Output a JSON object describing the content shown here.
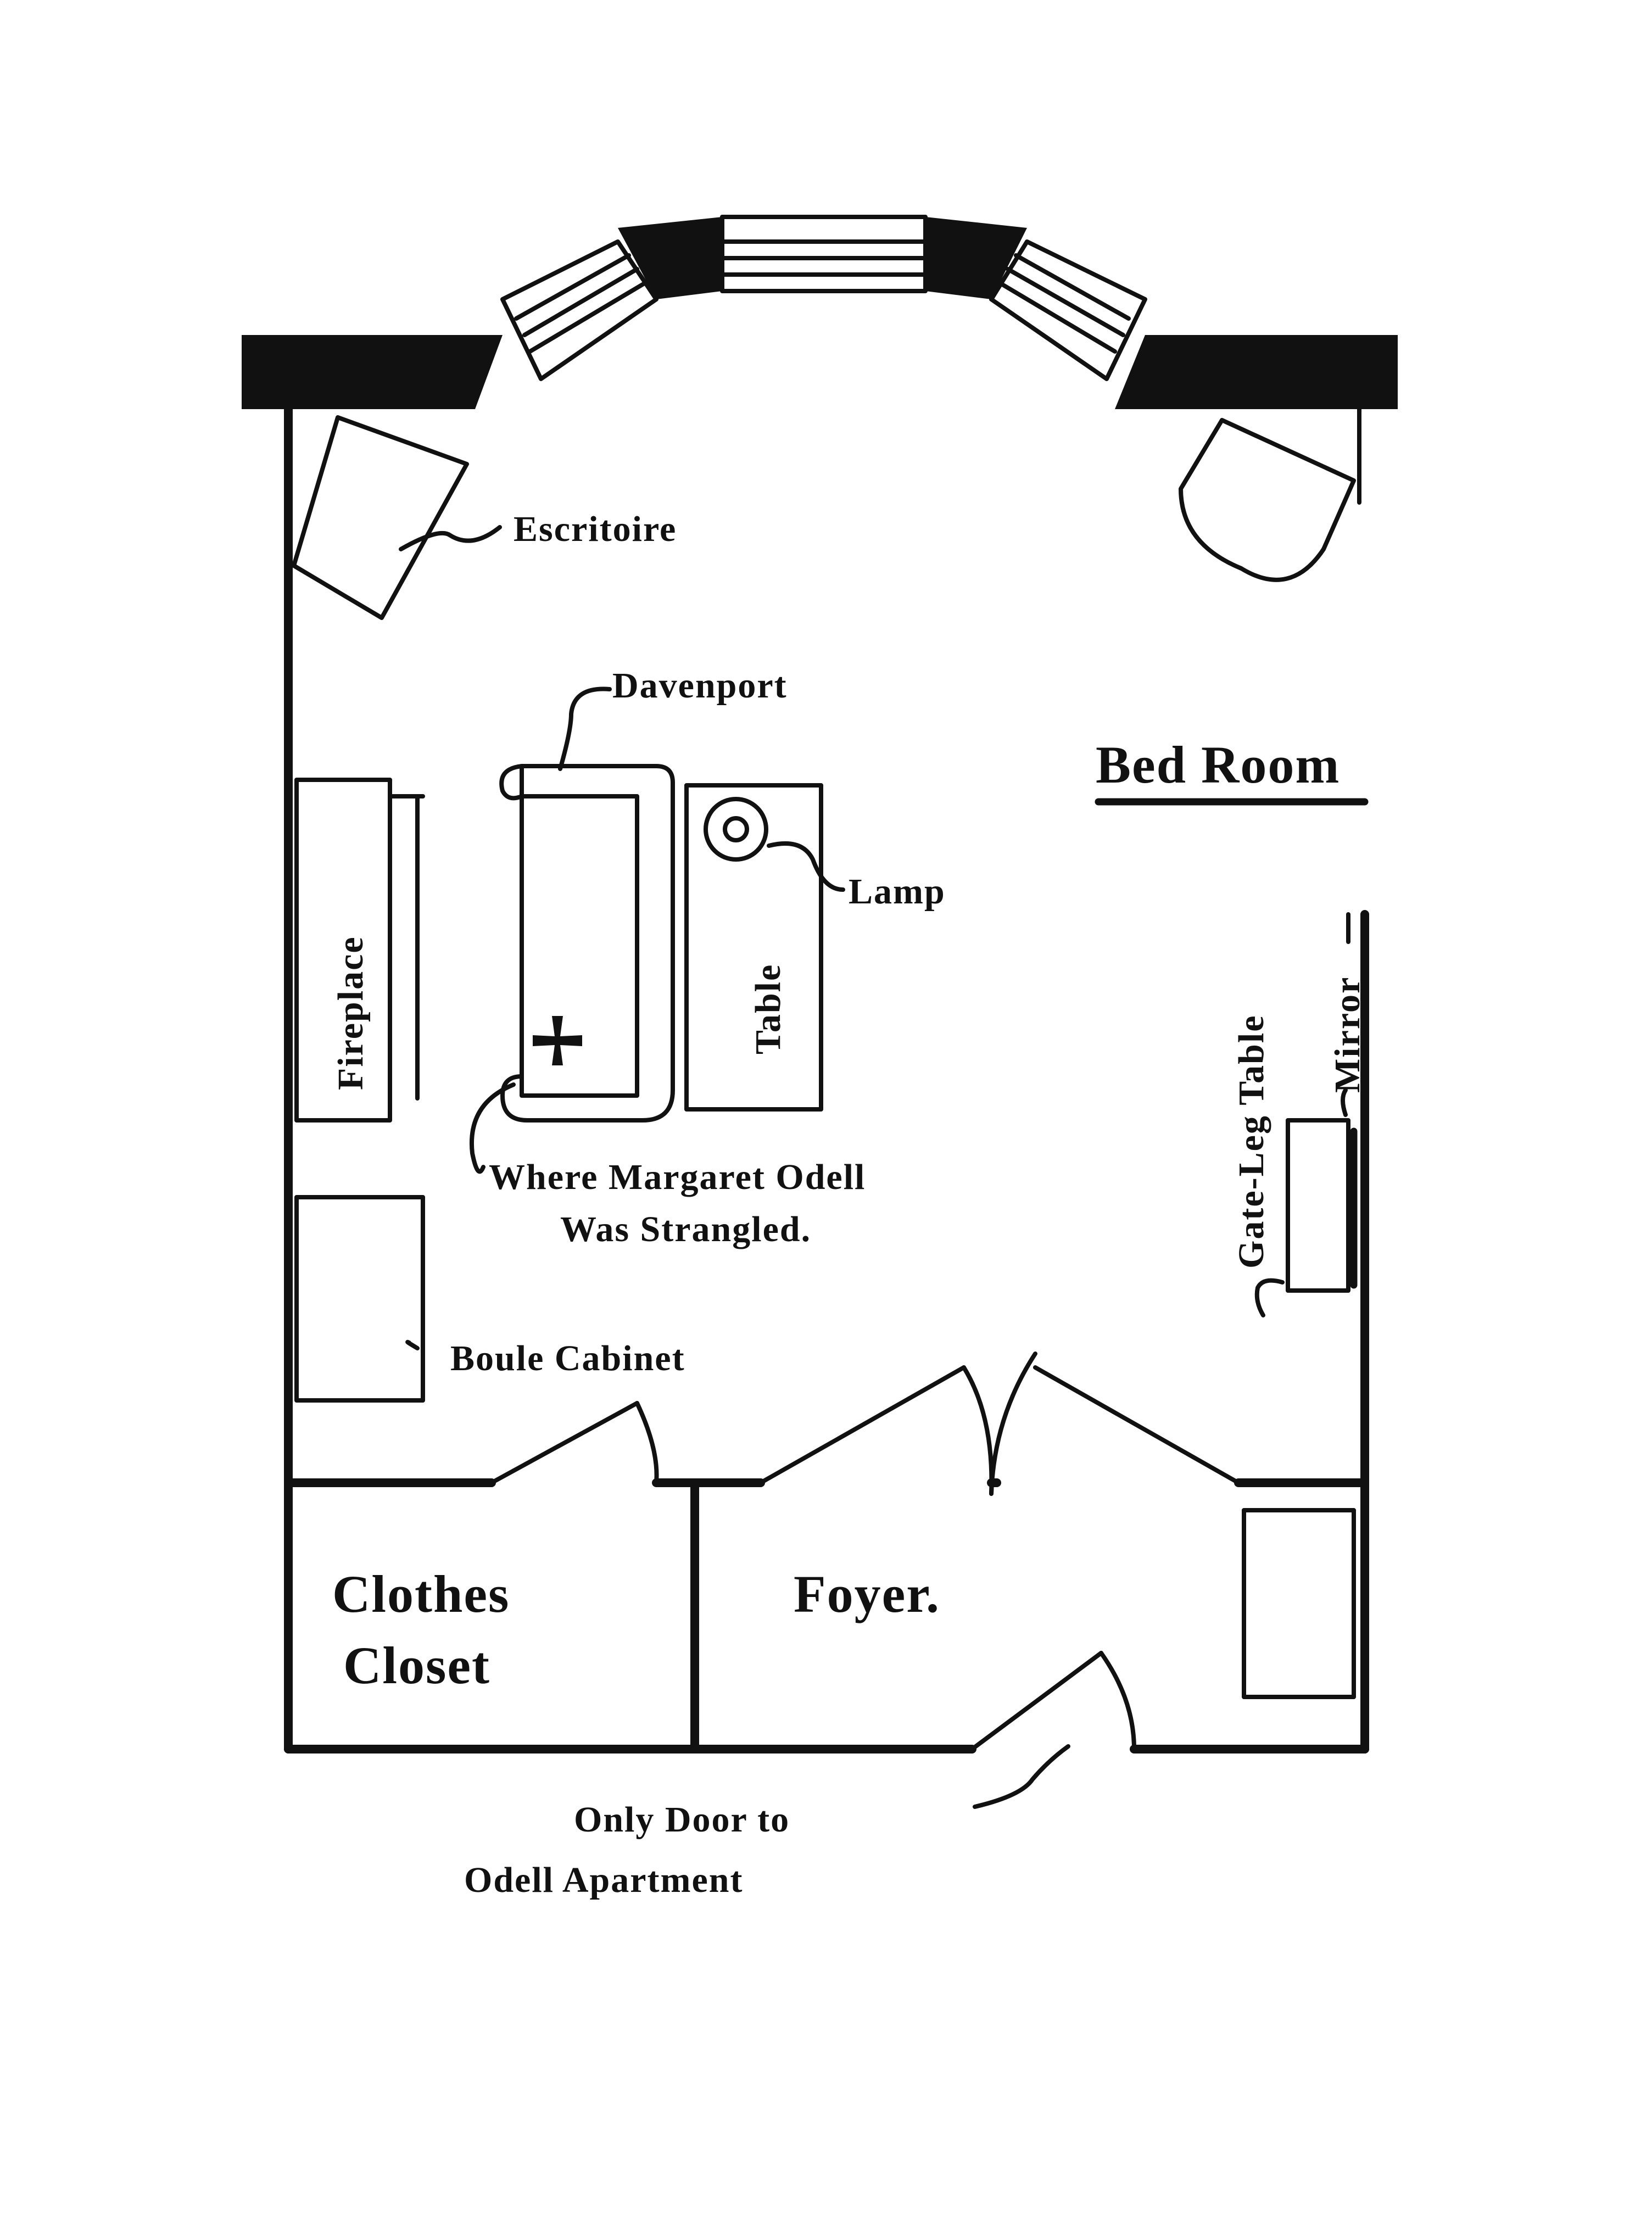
{
  "labels": {
    "escritoire": "Escritoire",
    "davenport": "Davenport",
    "bed_room": "Bed Room",
    "lamp": "Lamp",
    "table": "Table",
    "fireplace": "Fireplace",
    "gate_leg_table": "Gate-Leg Table",
    "mirror": "Mirror",
    "where_line1": "Where Margaret Odell",
    "where_line2": "Was Strangled.",
    "boule_cabinet": "Boule Cabinet",
    "clothes_line1": "Clothes",
    "clothes_line2": "Closet",
    "foyer": "Foyer.",
    "door_line1": "Only Door to",
    "door_line2": "Odell Apartment"
  },
  "colors": {
    "ink": "#111111",
    "paper": "#ffffff"
  },
  "icons": {
    "crime_mark": "cross-pattee-icon"
  }
}
